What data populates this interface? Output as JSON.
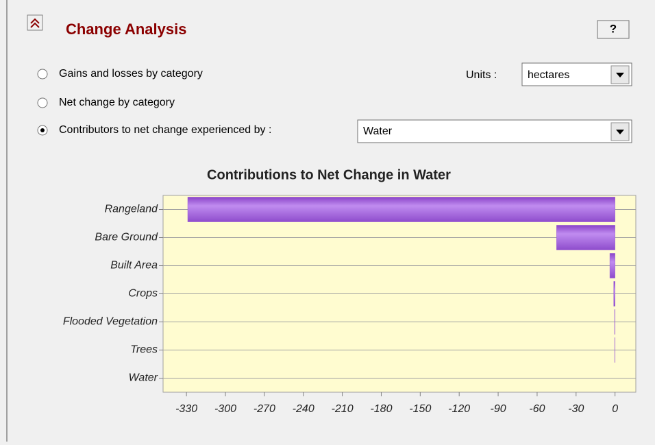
{
  "panel": {
    "title": "Change Analysis",
    "help": "?",
    "options": [
      "Gains and losses by category",
      "Net change by category",
      "Contributors to net change experienced by :"
    ],
    "selected": 2,
    "units_label": "Units :",
    "units_value": "hectares",
    "target_value": "Water"
  },
  "chart_data": {
    "type": "hbar",
    "title": "Contributions to Net Change in Water",
    "categories": [
      "Rangeland",
      "Bare Ground",
      "Built Area",
      "Crops",
      "Flooded Vegetation",
      "Trees",
      "Water"
    ],
    "values": [
      -329,
      -45,
      -4,
      -1,
      -0.3,
      -0.2,
      0
    ],
    "color": "#9b59d6",
    "xlim": [
      -348,
      16
    ],
    "xticks": [
      -330,
      -300,
      -270,
      -240,
      -210,
      -180,
      -150,
      -120,
      -90,
      -60,
      -30,
      0
    ],
    "grid": true
  }
}
